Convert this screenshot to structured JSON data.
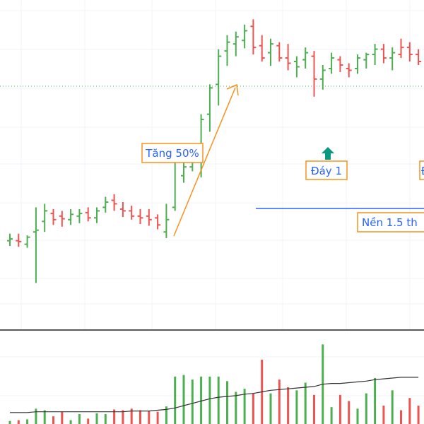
{
  "colors": {
    "up": "#4caf50",
    "down": "#ef5350",
    "annotation": "#f5921e",
    "base_line": "#2962ff",
    "annotation_text": "#2962ff",
    "up_arrow": "#089981",
    "grid": "#f0f3fa",
    "separator": "#222222",
    "volume_ma": "#333333",
    "dotted_level": "#4caf50"
  },
  "annotations": {
    "rise": "Tăng 50%",
    "bottom1": "Đáy 1",
    "base": "Nền 1.5 th",
    "right_cut": "Đ"
  },
  "chart_data": {
    "type": "ohlc",
    "y_range": [
      -10,
      360
    ],
    "volume_range": [
      0,
      120
    ],
    "grid": true,
    "legend": "none",
    "series": [
      {
        "name": "price",
        "bars": [
          {
            "o": 86,
            "h": 94,
            "l": 80,
            "c": 88,
            "d": 1
          },
          {
            "o": 86,
            "h": 94,
            "l": 79,
            "c": 85,
            "d": -1
          },
          {
            "o": 82,
            "h": 92,
            "l": 78,
            "c": 90,
            "d": 1
          },
          {
            "o": 96,
            "h": 124,
            "l": 38,
            "c": 98,
            "d": 1
          },
          {
            "o": 108,
            "h": 128,
            "l": 96,
            "c": 120,
            "d": 1
          },
          {
            "o": 117,
            "h": 122,
            "l": 104,
            "c": 110,
            "d": -1
          },
          {
            "o": 114,
            "h": 120,
            "l": 102,
            "c": 111,
            "d": -1
          },
          {
            "o": 110,
            "h": 122,
            "l": 104,
            "c": 116,
            "d": 1
          },
          {
            "o": 114,
            "h": 122,
            "l": 106,
            "c": 117,
            "d": 1
          },
          {
            "o": 118,
            "h": 124,
            "l": 108,
            "c": 112,
            "d": -1
          },
          {
            "o": 112,
            "h": 124,
            "l": 106,
            "c": 120,
            "d": 1
          },
          {
            "o": 124,
            "h": 136,
            "l": 118,
            "c": 130,
            "d": 1
          },
          {
            "o": 132,
            "h": 139,
            "l": 120,
            "c": 128,
            "d": -1
          },
          {
            "o": 122,
            "h": 130,
            "l": 113,
            "c": 120,
            "d": -1
          },
          {
            "o": 120,
            "h": 126,
            "l": 110,
            "c": 114,
            "d": -1
          },
          {
            "o": 114,
            "h": 122,
            "l": 105,
            "c": 112,
            "d": -1
          },
          {
            "o": 114,
            "h": 122,
            "l": 103,
            "c": 110,
            "d": -1
          },
          {
            "o": 112,
            "h": 116,
            "l": 99,
            "c": 104,
            "d": -1
          },
          {
            "o": 96,
            "h": 128,
            "l": 89,
            "c": 110,
            "d": 1
          },
          {
            "o": 124,
            "h": 188,
            "l": 120,
            "c": 180,
            "d": 1
          },
          {
            "o": 160,
            "h": 180,
            "l": 152,
            "c": 170,
            "d": 1
          },
          {
            "o": 170,
            "h": 196,
            "l": 165,
            "c": 190,
            "d": 1
          },
          {
            "o": 190,
            "h": 230,
            "l": 158,
            "c": 224,
            "d": 1
          },
          {
            "o": 230,
            "h": 264,
            "l": 210,
            "c": 260,
            "d": 1
          },
          {
            "o": 264,
            "h": 304,
            "l": 240,
            "c": 296,
            "d": 1
          },
          {
            "o": 302,
            "h": 320,
            "l": 285,
            "c": 312,
            "d": 1
          },
          {
            "o": 310,
            "h": 324,
            "l": 296,
            "c": 318,
            "d": 1
          },
          {
            "o": 314,
            "h": 332,
            "l": 305,
            "c": 325,
            "d": 1
          },
          {
            "o": 330,
            "h": 338,
            "l": 298,
            "c": 306,
            "d": -1
          },
          {
            "o": 308,
            "h": 320,
            "l": 290,
            "c": 294,
            "d": -1
          },
          {
            "o": 300,
            "h": 316,
            "l": 285,
            "c": 310,
            "d": 1
          },
          {
            "o": 308,
            "h": 312,
            "l": 290,
            "c": 294,
            "d": -1
          },
          {
            "o": 294,
            "h": 310,
            "l": 280,
            "c": 288,
            "d": -1
          },
          {
            "o": 290,
            "h": 296,
            "l": 272,
            "c": 284,
            "d": 1
          },
          {
            "o": 292,
            "h": 306,
            "l": 282,
            "c": 300,
            "d": 1
          },
          {
            "o": 296,
            "h": 302,
            "l": 250,
            "c": 270,
            "d": -1
          },
          {
            "o": 270,
            "h": 286,
            "l": 258,
            "c": 280,
            "d": 1
          },
          {
            "o": 282,
            "h": 300,
            "l": 276,
            "c": 294,
            "d": 1
          },
          {
            "o": 292,
            "h": 296,
            "l": 278,
            "c": 286,
            "d": -1
          },
          {
            "o": 282,
            "h": 288,
            "l": 272,
            "c": 280,
            "d": -1
          },
          {
            "o": 282,
            "h": 298,
            "l": 276,
            "c": 294,
            "d": 1
          },
          {
            "o": 292,
            "h": 300,
            "l": 282,
            "c": 298,
            "d": 1
          },
          {
            "o": 298,
            "h": 310,
            "l": 286,
            "c": 304,
            "d": 1
          },
          {
            "o": 304,
            "h": 310,
            "l": 288,
            "c": 294,
            "d": -1
          },
          {
            "o": 294,
            "h": 306,
            "l": 280,
            "c": 300,
            "d": 1
          },
          {
            "o": 298,
            "h": 316,
            "l": 294,
            "c": 306,
            "d": -1
          },
          {
            "o": 306,
            "h": 312,
            "l": 290,
            "c": 298,
            "d": -1
          },
          {
            "o": 298,
            "h": 304,
            "l": 286,
            "c": 290,
            "d": -1
          }
        ]
      },
      {
        "name": "volume",
        "values": [
          4,
          5,
          6,
          20,
          18,
          10,
          16,
          5,
          13,
          7,
          14,
          13,
          19,
          18,
          20,
          18,
          17,
          16,
          23,
          62,
          64,
          58,
          62,
          62,
          62,
          56,
          42,
          46,
          40,
          84,
          40,
          58,
          48,
          44,
          54,
          38,
          104,
          22,
          38,
          30,
          20,
          40,
          60,
          24,
          44,
          18,
          34,
          24
        ]
      },
      {
        "name": "volume_ma",
        "values": [
          15,
          15,
          15,
          16,
          16,
          16,
          16,
          16,
          16,
          16,
          16,
          16,
          16,
          16,
          17,
          17,
          17,
          18,
          19,
          21,
          24,
          27,
          30,
          33,
          35,
          36,
          37,
          39,
          40,
          42,
          44,
          45,
          46,
          47,
          48,
          49,
          52,
          53,
          53,
          54,
          55,
          56,
          58,
          59,
          60,
          61,
          61,
          61
        ]
      }
    ]
  }
}
